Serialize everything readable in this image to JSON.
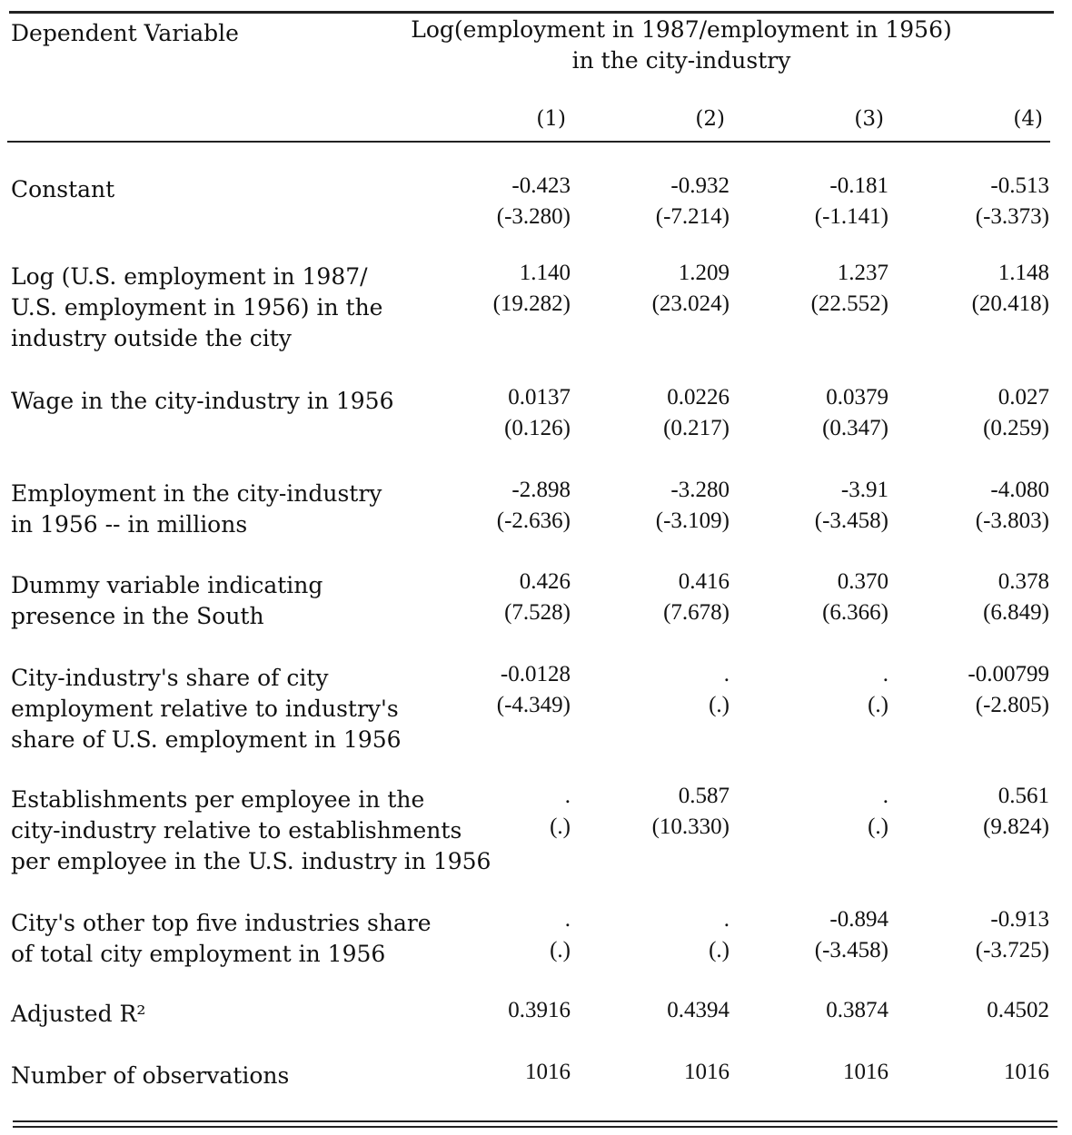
{
  "header": {
    "dependent_label": "Dependent Variable",
    "dependent_title_line1": "Log(employment in 1987/employment in 1956)",
    "dependent_title_line2": "in the city-industry",
    "columns": [
      "(1)",
      "(2)",
      "(3)",
      "(4)"
    ]
  },
  "rows": [
    {
      "label": [
        "Constant"
      ],
      "cells": [
        {
          "coef": "-0.423",
          "t": "(-3.280)"
        },
        {
          "coef": "-0.932",
          "t": "(-7.214)"
        },
        {
          "coef": "-0.181",
          "t": "(-1.141)"
        },
        {
          "coef": "-0.513",
          "t": "(-3.373)"
        }
      ]
    },
    {
      "label": [
        "Log (U.S. employment in 1987/",
        "U.S. employment in 1956) in the",
        "industry outside the city"
      ],
      "cells": [
        {
          "coef": "1.140",
          "t": "(19.282)"
        },
        {
          "coef": "1.209",
          "t": "(23.024)"
        },
        {
          "coef": "1.237",
          "t": "(22.552)"
        },
        {
          "coef": "1.148",
          "t": "(20.418)"
        }
      ]
    },
    {
      "label": [
        "Wage in the city-industry in 1956"
      ],
      "cells": [
        {
          "coef": "0.0137",
          "t": "(0.126)"
        },
        {
          "coef": "0.0226",
          "t": "(0.217)"
        },
        {
          "coef": "0.0379",
          "t": "(0.347)"
        },
        {
          "coef": "0.027",
          "t": "(0.259)"
        }
      ]
    },
    {
      "label": [
        "Employment in the city-industry",
        "in 1956 -- in millions"
      ],
      "cells": [
        {
          "coef": "-2.898",
          "t": "(-2.636)"
        },
        {
          "coef": "-3.280",
          "t": "(-3.109)"
        },
        {
          "coef": "-3.91",
          "t": "(-3.458)"
        },
        {
          "coef": "-4.080",
          "t": "(-3.803)"
        }
      ]
    },
    {
      "label": [
        "Dummy variable indicating",
        "presence in the South"
      ],
      "cells": [
        {
          "coef": "0.426",
          "t": "(7.528)"
        },
        {
          "coef": "0.416",
          "t": "(7.678)"
        },
        {
          "coef": "0.370",
          "t": "(6.366)"
        },
        {
          "coef": "0.378",
          "t": "(6.849)"
        }
      ]
    },
    {
      "label": [
        "City-industry's share of city",
        "employment relative to industry's",
        "share of U.S. employment in 1956"
      ],
      "cells": [
        {
          "coef": "-0.0128",
          "t": "(-4.349)"
        },
        {
          "coef": ".",
          "t": "(.)"
        },
        {
          "coef": ".",
          "t": "(.)"
        },
        {
          "coef": "-0.00799",
          "t": "(-2.805)"
        }
      ]
    },
    {
      "label": [
        "Establishments per employee in the",
        "city-industry relative to establishments",
        "per employee in the U.S. industry  in 1956"
      ],
      "cells": [
        {
          "coef": ".",
          "t": "(.)"
        },
        {
          "coef": "0.587",
          "t": "(10.330)"
        },
        {
          "coef": ".",
          "t": "(.)"
        },
        {
          "coef": "0.561",
          "t": "(9.824)"
        }
      ]
    },
    {
      "label": [
        "City's other top five industries share",
        "of total city employment in 1956"
      ],
      "cells": [
        {
          "coef": ".",
          "t": "(.)"
        },
        {
          "coef": ".",
          "t": "(.)"
        },
        {
          "coef": "-0.894",
          "t": "(-3.458)"
        },
        {
          "coef": "-0.913",
          "t": "(-3.725)"
        }
      ]
    },
    {
      "label": [
        "Adjusted R²"
      ],
      "cells": [
        {
          "coef": "0.3916"
        },
        {
          "coef": "0.4394"
        },
        {
          "coef": "0.3874"
        },
        {
          "coef": "0.4502"
        }
      ]
    },
    {
      "label": [
        "Number of observations"
      ],
      "cells": [
        {
          "coef": "1016"
        },
        {
          "coef": "1016"
        },
        {
          "coef": "1016"
        },
        {
          "coef": "1016"
        }
      ]
    }
  ]
}
